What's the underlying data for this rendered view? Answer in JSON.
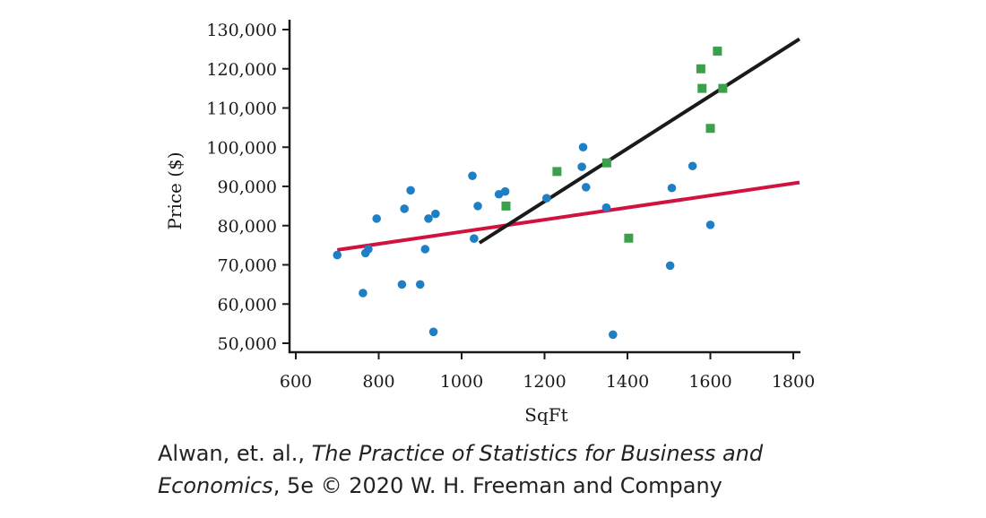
{
  "chart_data": {
    "type": "scatter",
    "xlabel": "SqFt",
    "ylabel": "Price ($)",
    "xlim": [
      600,
      1800
    ],
    "ylim": [
      50000,
      130000
    ],
    "xticks": [
      600,
      800,
      1000,
      1200,
      1400,
      1600,
      1800
    ],
    "yticks": [
      50000,
      60000,
      70000,
      80000,
      90000,
      100000,
      110000,
      120000,
      130000
    ],
    "xtick_labels": [
      "600",
      "800",
      "1000",
      "1200",
      "1400",
      "1600",
      "1800"
    ],
    "ytick_labels": [
      "50,000",
      "60,000",
      "70,000",
      "80,000",
      "90,000",
      "100,000",
      "110,000",
      "120,000",
      "130,000"
    ],
    "series": [
      {
        "marker": "circle",
        "color": "#1f7fc4",
        "points": [
          [
            700,
            72500
          ],
          [
            762,
            62800
          ],
          [
            768,
            73000
          ],
          [
            775,
            74000
          ],
          [
            795,
            81800
          ],
          [
            856,
            65000
          ],
          [
            862,
            84300
          ],
          [
            877,
            89000
          ],
          [
            900,
            65000
          ],
          [
            912,
            74000
          ],
          [
            920,
            81800
          ],
          [
            932,
            52900
          ],
          [
            937,
            83000
          ],
          [
            1026,
            92700
          ],
          [
            1030,
            76700
          ],
          [
            1039,
            85000
          ],
          [
            1090,
            88000
          ],
          [
            1105,
            88700
          ],
          [
            1205,
            87000
          ],
          [
            1290,
            95000
          ],
          [
            1293,
            100000
          ],
          [
            1300,
            89800
          ],
          [
            1349,
            84600
          ],
          [
            1365,
            52200
          ],
          [
            1503,
            69800
          ],
          [
            1507,
            89600
          ],
          [
            1557,
            95200
          ],
          [
            1600,
            80200
          ]
        ]
      },
      {
        "marker": "square",
        "color": "#3aa04a",
        "points": [
          [
            1107,
            85000
          ],
          [
            1230,
            93800
          ],
          [
            1350,
            96000
          ],
          [
            1403,
            76800
          ],
          [
            1577,
            120000
          ],
          [
            1580,
            115000
          ],
          [
            1600,
            104800
          ],
          [
            1617,
            124500
          ],
          [
            1630,
            115000
          ]
        ]
      }
    ],
    "lines": [
      {
        "color": "#d1123f",
        "from": [
          700,
          73800
        ],
        "to": [
          1815,
          91000
        ]
      },
      {
        "color": "#1a1a1a",
        "from": [
          1043,
          75600
        ],
        "to": [
          1815,
          127600
        ]
      }
    ]
  },
  "credit": {
    "authors": "Alwan, et. al., ",
    "book_line1": "The Practice of Statistics for Business and",
    "book_line2": "Economics",
    "edition": ", 5e © 2020 W. H. Freeman and Company"
  }
}
